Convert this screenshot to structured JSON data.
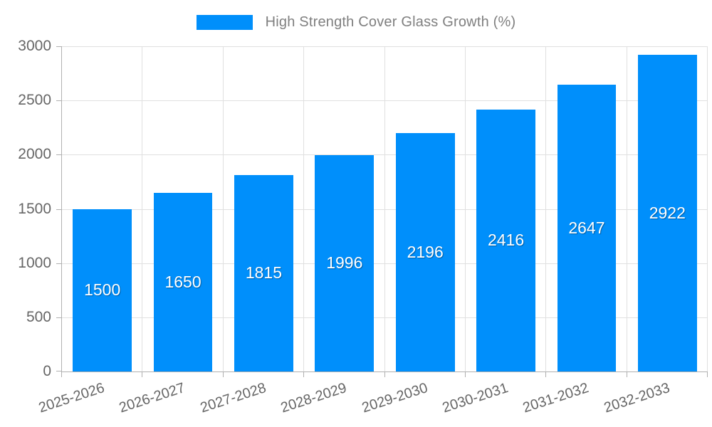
{
  "chart_data": {
    "type": "bar",
    "title": "High Strength Cover Glass Growth (%)",
    "categories": [
      "2025-2026",
      "2026-2027",
      "2027-2028",
      "2028-2029",
      "2029-2030",
      "2030-2031",
      "2031-2032",
      "2032-2033"
    ],
    "values": [
      1500,
      1650,
      1815,
      1996,
      2196,
      2416,
      2647,
      2922
    ],
    "xlabel": "",
    "ylabel": "",
    "ylim": [
      0,
      3000
    ],
    "yticks": [
      0,
      500,
      1000,
      1500,
      2000,
      2500,
      3000
    ],
    "grid": true,
    "legend_position": "top",
    "bar_color": "#008FFB",
    "value_label_color": "#ffffff",
    "gridline_color": "#e0e0e0",
    "axis_line_color": "#b0b0b0",
    "axis_label_color": "#666666",
    "legend_text_color": "#7f7f7f"
  }
}
